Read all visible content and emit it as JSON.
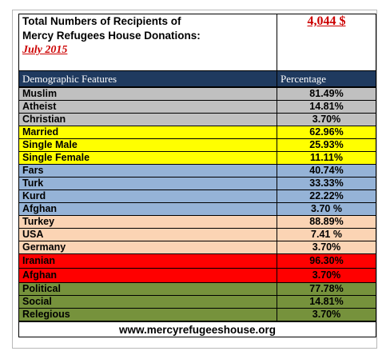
{
  "header": {
    "title_line1": "Total Numbers of Recipients of",
    "title_line2": "Mercy Refugees House Donations:",
    "period": "July 2015",
    "total": "4,044 $"
  },
  "columns": {
    "feature": "Demographic Features",
    "percentage": "Percentage"
  },
  "colors": {
    "religion": "#c0c0c0",
    "marital": "#ffff00",
    "ethnicity": "#95b3d7",
    "country": "#fbd4b4",
    "origin": "#ff0000",
    "motive": "#76923c",
    "header_bg": "#1f3a5f",
    "accent_red": "#cc0000"
  },
  "rows": [
    {
      "label": "Muslim",
      "value": "81.49%",
      "group": "religion"
    },
    {
      "label": "Atheist",
      "value": "14.81%",
      "group": "religion"
    },
    {
      "label": "Christian",
      "value": "3.70%",
      "group": "religion"
    },
    {
      "label": "Married",
      "value": "62.96%",
      "group": "marital"
    },
    {
      "label": "Single Male",
      "value": "25.93%",
      "group": "marital"
    },
    {
      "label": "Single Female",
      "value": "11.11%",
      "group": "marital"
    },
    {
      "label": "Fars",
      "value": "40.74%",
      "group": "ethnicity"
    },
    {
      "label": "Turk",
      "value": "33.33%",
      "group": "ethnicity"
    },
    {
      "label": "Kurd",
      "value": "22.22%",
      "group": "ethnicity"
    },
    {
      "label": "Afghan",
      "value": "3.70 %",
      "group": "ethnicity"
    },
    {
      "label": "Turkey",
      "value": "88.89%",
      "group": "country"
    },
    {
      "label": "USA",
      "value": "7.41 %",
      "group": "country"
    },
    {
      "label": "Germany",
      "value": "3.70%",
      "group": "country"
    },
    {
      "label": "Iranian",
      "value": "96.30%",
      "group": "origin"
    },
    {
      "label": "Afghan",
      "value": "3.70%",
      "group": "origin"
    },
    {
      "label": "Political",
      "value": "77.78%",
      "group": "motive"
    },
    {
      "label": "Social",
      "value": "14.81%",
      "group": "motive"
    },
    {
      "label": "Relegious",
      "value": "3.70%",
      "group": "motive"
    }
  ],
  "footer": {
    "website": "www.mercyrefugeeshouse.org"
  }
}
